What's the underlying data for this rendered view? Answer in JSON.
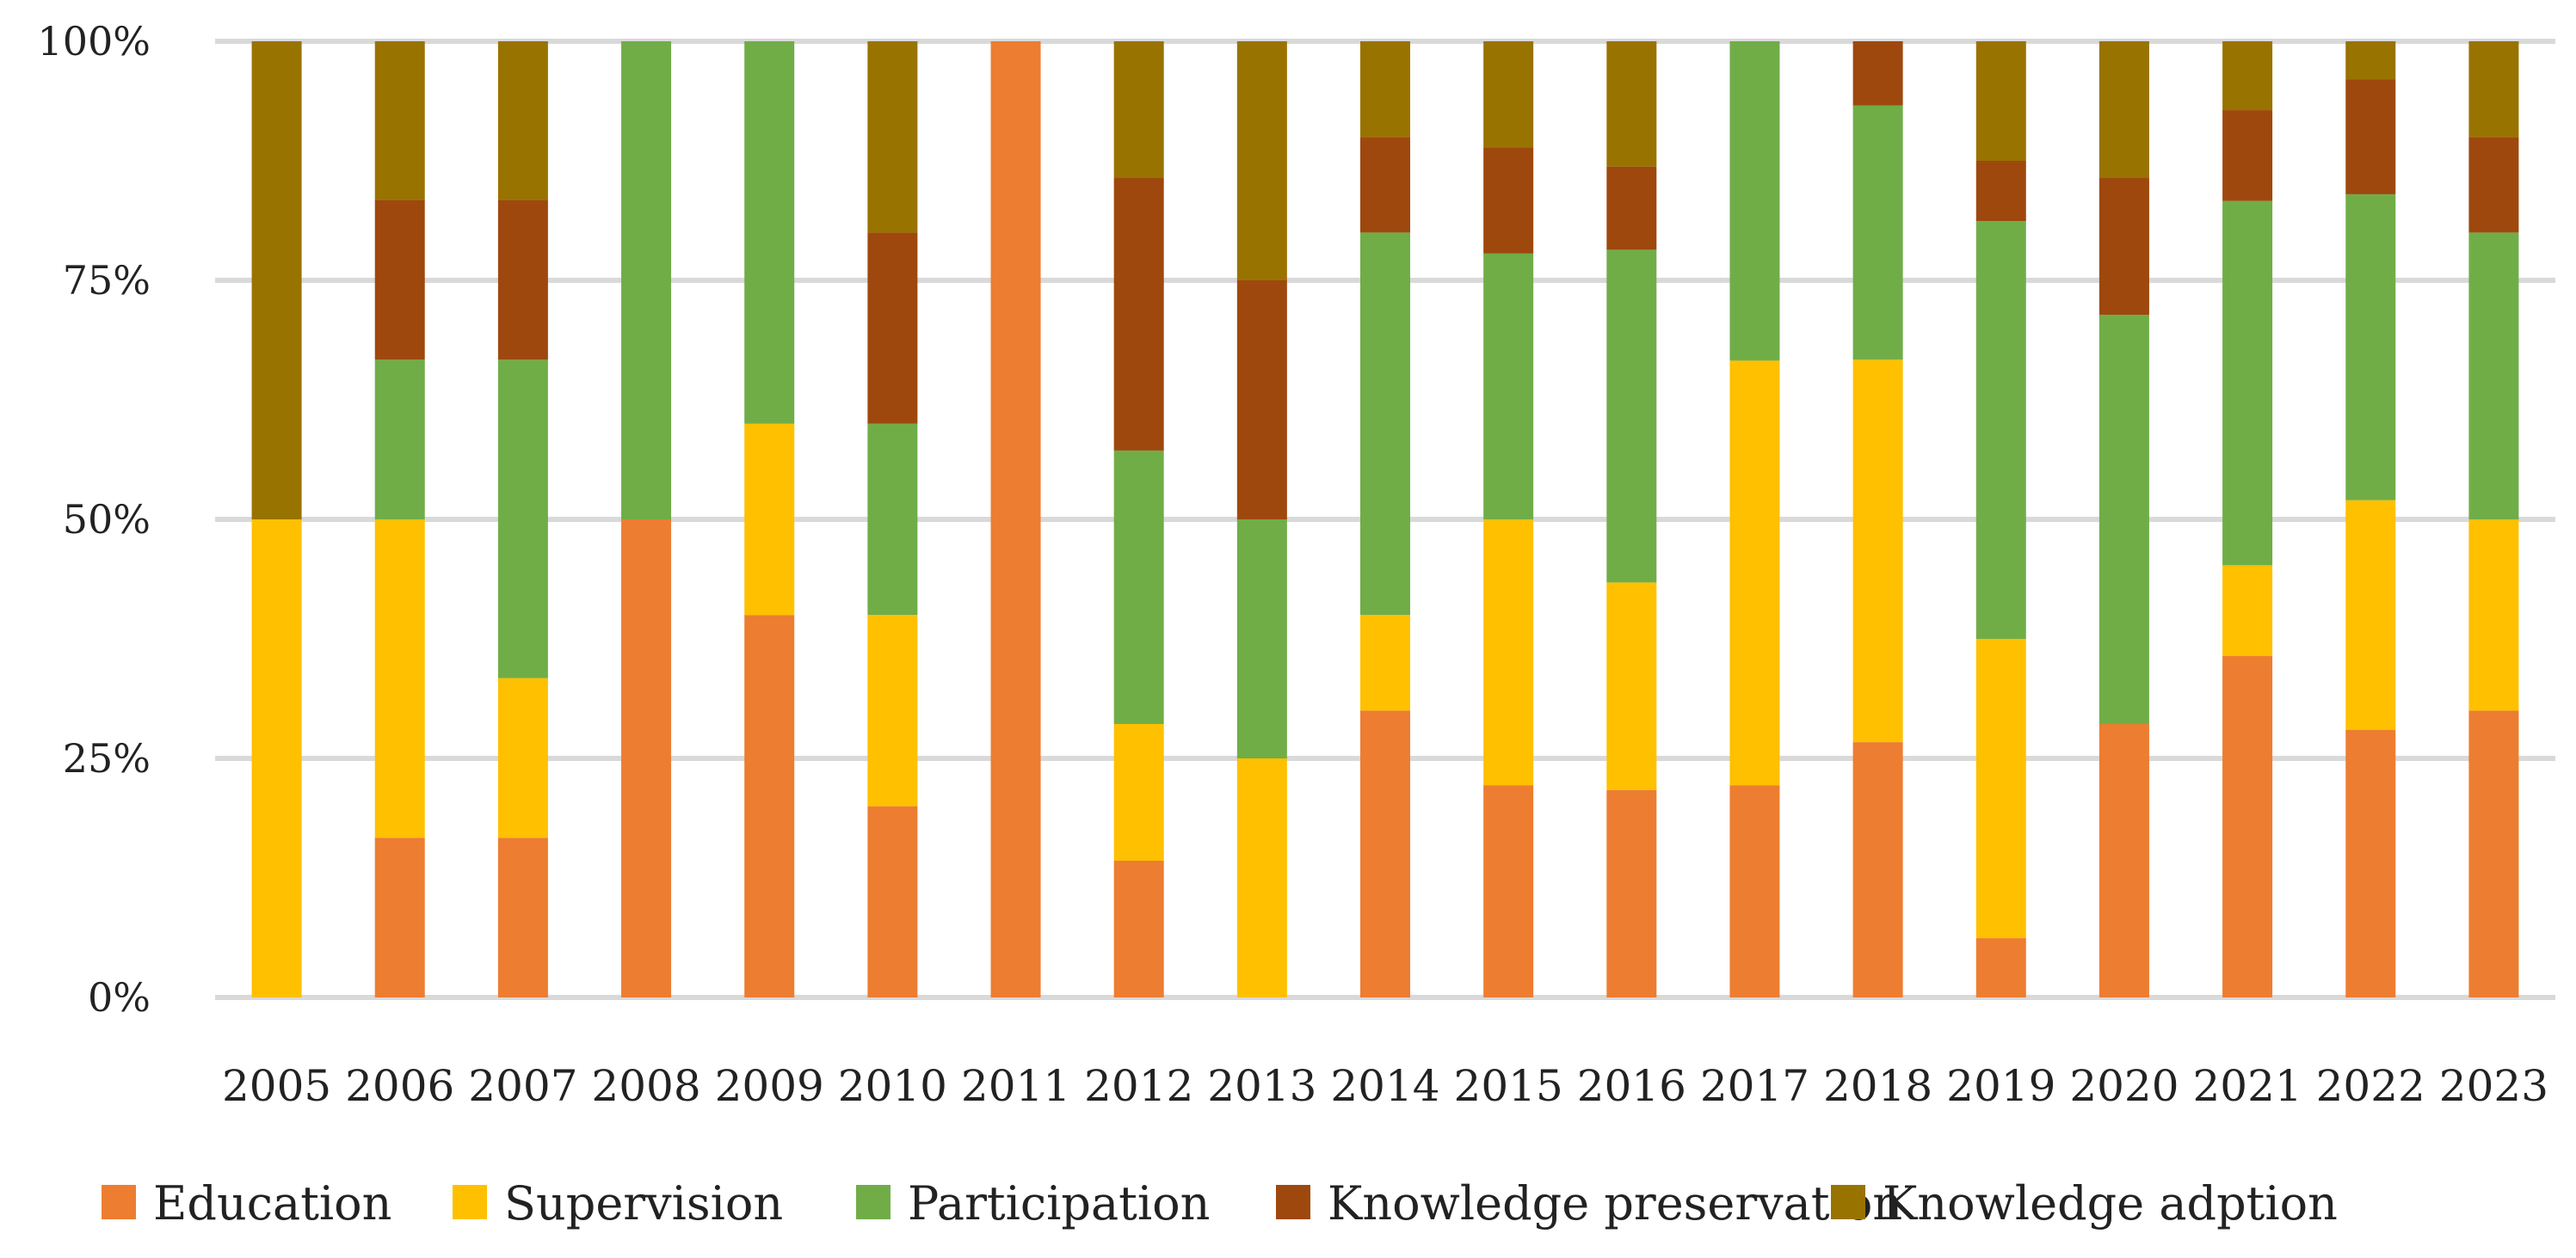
{
  "chart_data": {
    "type": "bar",
    "stacked": true,
    "normalized": true,
    "ylim": [
      0,
      100
    ],
    "yticks": [
      {
        "value": 0,
        "label": "0%"
      },
      {
        "value": 25,
        "label": "25%"
      },
      {
        "value": 50,
        "label": "50%"
      },
      {
        "value": 75,
        "label": "75%"
      },
      {
        "value": 100,
        "label": "100%"
      }
    ],
    "grid": true,
    "legend_position": "bottom",
    "categories": [
      "2005",
      "2006",
      "2007",
      "2008",
      "2009",
      "2010",
      "2011",
      "2012",
      "2013",
      "2014",
      "2015",
      "2016",
      "2017",
      "2018",
      "2019",
      "2020",
      "2021",
      "2022",
      "2023"
    ],
    "series": [
      {
        "name": "Education",
        "color": "#ED7D31",
        "values": [
          0,
          16.7,
          16.7,
          50,
          40,
          20,
          100,
          14.3,
          0,
          30,
          22.2,
          21.7,
          22.2,
          26.7,
          6.2,
          28.6,
          35.7,
          28,
          30
        ]
      },
      {
        "name": "Supervision",
        "color": "#FFC000",
        "values": [
          50,
          33.3,
          16.7,
          0,
          20,
          20,
          0,
          14.3,
          25,
          10,
          27.8,
          21.7,
          44.4,
          40,
          31.3,
          0,
          9.5,
          24,
          20
        ]
      },
      {
        "name": "Participation",
        "color": "#70AD47",
        "values": [
          0,
          16.7,
          33.3,
          50,
          40,
          20,
          0,
          28.6,
          25,
          40,
          27.8,
          34.8,
          33.4,
          26.6,
          43.7,
          42.8,
          38.1,
          32,
          30
        ]
      },
      {
        "name": "Knowledge preservation",
        "color": "#9E480E",
        "values": [
          0,
          16.7,
          16.7,
          0,
          0,
          20,
          0,
          28.5,
          25,
          10,
          11.1,
          8.7,
          0,
          6.7,
          6.3,
          14.3,
          9.5,
          12,
          10
        ]
      },
      {
        "name": "Knowledge adption",
        "color": "#997300",
        "values": [
          50,
          16.6,
          16.6,
          0,
          0,
          20,
          0,
          14.3,
          25,
          10,
          11.1,
          13.1,
          0,
          0,
          12.5,
          14.3,
          7.2,
          4,
          10
        ]
      }
    ]
  }
}
